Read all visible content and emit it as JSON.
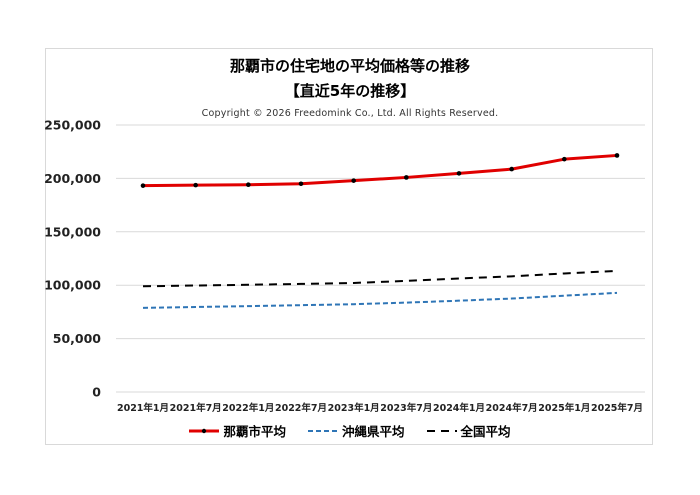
{
  "title_line1": "那覇市の住宅地の平均価格等の推移",
  "title_line2": "【直近5年の推移】",
  "copyright": "Copyright © 2026 Freedomink Co., Ltd. All Rights Reserved.",
  "legend": [
    {
      "label": "那覇市平均",
      "color": "#e00000",
      "style": "solid-marker"
    },
    {
      "label": "沖縄県平均",
      "color": "#2e75b6",
      "style": "dash-short"
    },
    {
      "label": "全国平均",
      "color": "#000000",
      "style": "dash-long"
    }
  ],
  "chart_data": {
    "type": "line",
    "title": "那覇市の住宅地の平均価格等の推移 【直近5年の推移】",
    "subtitle": "Copyright © 2026 Freedomink Co., Ltd. All Rights Reserved.",
    "xlabel": "",
    "ylabel": "",
    "categories": [
      "2021年1月",
      "2021年7月",
      "2022年1月",
      "2022年7月",
      "2023年1月",
      "2023年7月",
      "2024年1月",
      "2024年7月",
      "2025年1月",
      "2025年7月"
    ],
    "ylim": [
      0,
      250000
    ],
    "yticks": [
      "0",
      "50,000",
      "100,000",
      "150,000",
      "200,000",
      "250,000"
    ],
    "grid": true,
    "legend_position": "bottom",
    "series": [
      {
        "name": "那覇市平均",
        "color": "#e00000",
        "values": [
          193200,
          193700,
          194100,
          195000,
          197900,
          200900,
          204700,
          208700,
          218000,
          221500
        ]
      },
      {
        "name": "沖縄県平均",
        "color": "#2e75b6",
        "values": [
          78800,
          79600,
          80400,
          81300,
          82200,
          83700,
          85500,
          87500,
          90200,
          92800
        ]
      },
      {
        "name": "全国平均",
        "color": "#000000",
        "values": [
          99000,
          99700,
          100400,
          101200,
          102100,
          104000,
          106300,
          108300,
          111000,
          113400
        ]
      }
    ]
  }
}
